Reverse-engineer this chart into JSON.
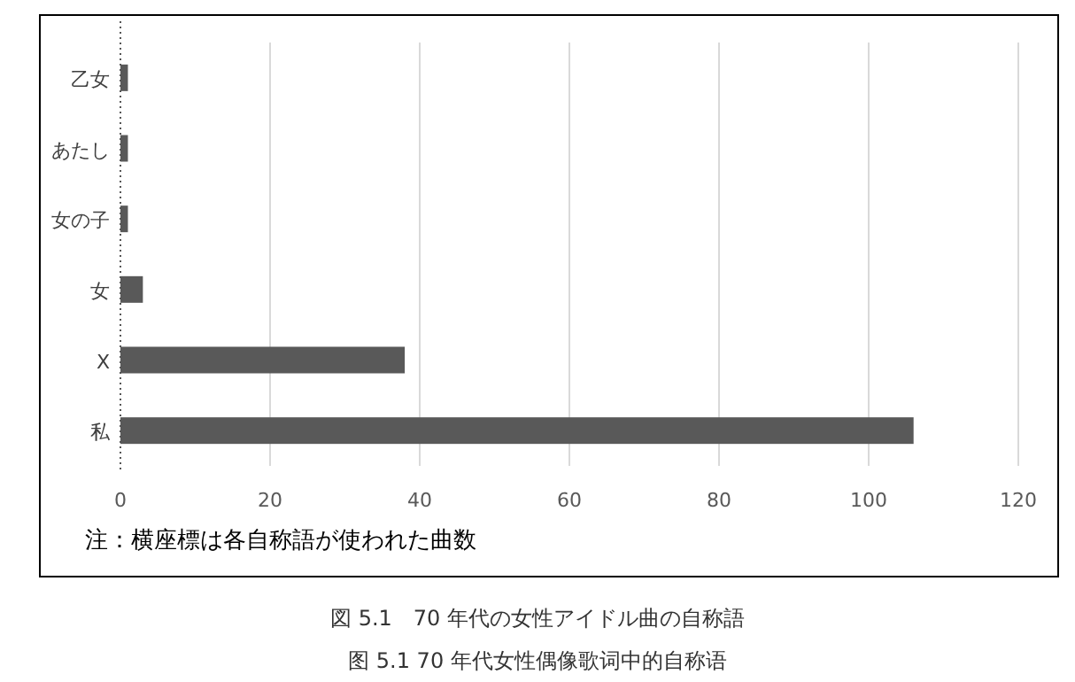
{
  "chart_data": {
    "type": "bar",
    "orientation": "horizontal",
    "categories": [
      "乙女",
      "あたし",
      "女の子",
      "女",
      "X",
      "私"
    ],
    "values": [
      1,
      1,
      1,
      3,
      38,
      106
    ],
    "color": "#595959",
    "xlim": [
      0,
      120
    ],
    "xticks": [
      0,
      20,
      40,
      60,
      80,
      100,
      120
    ],
    "grid": "x",
    "annotations": [
      "注：横座標は各自称語が使われた曲数",
      "図 5.1　70 年代の女性アイドル曲の自称語",
      "图 5.1 70 年代女性偶像歌词中的自称语"
    ]
  }
}
